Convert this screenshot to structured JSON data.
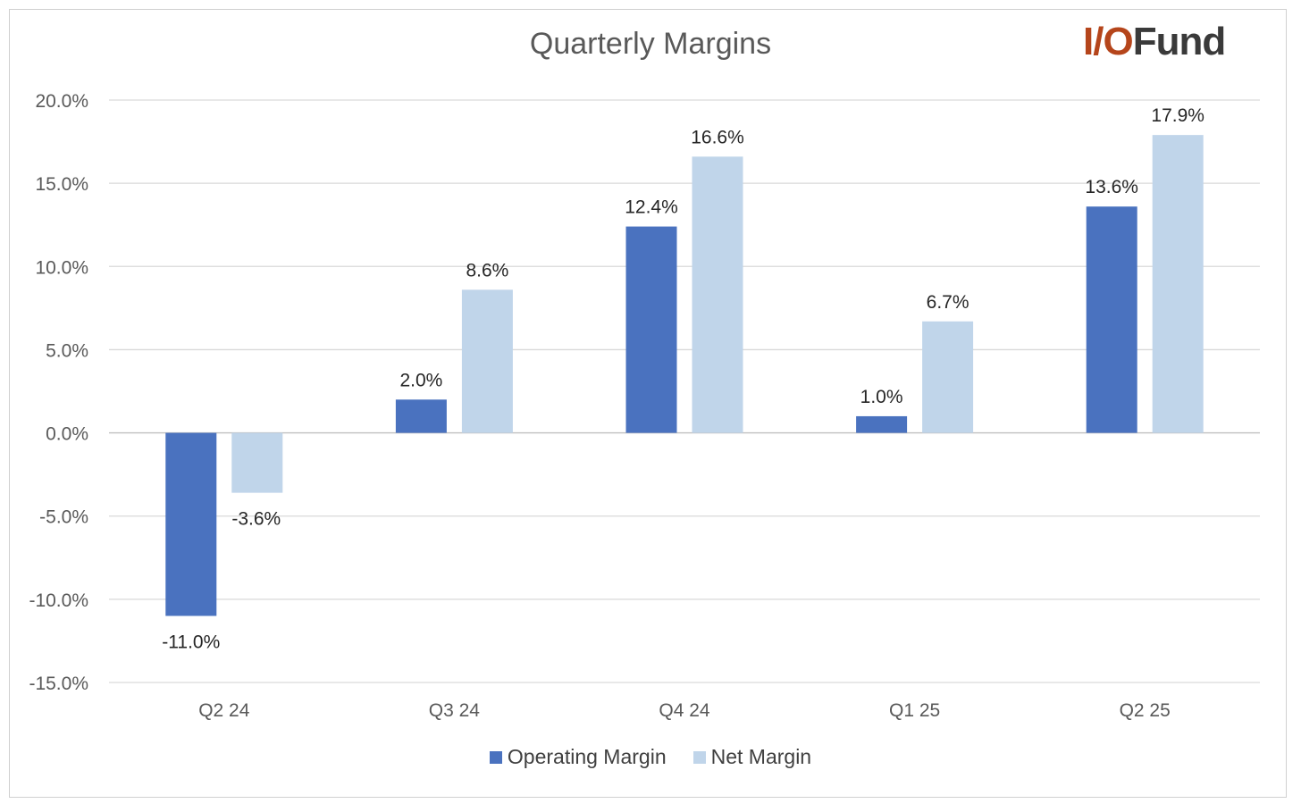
{
  "chart_data": {
    "type": "bar",
    "title": "Quarterly Margins",
    "categories": [
      "Q2 24",
      "Q3 24",
      "Q4 24",
      "Q1 25",
      "Q2 25"
    ],
    "series": [
      {
        "name": "Operating Margin",
        "color": "#4a72bf",
        "values": [
          -11.0,
          2.0,
          12.4,
          1.0,
          13.6
        ],
        "labels": [
          "-11.0%",
          "2.0%",
          "12.4%",
          "1.0%",
          "13.6%"
        ]
      },
      {
        "name": "Net Margin",
        "color": "#c0d5ea",
        "values": [
          -3.6,
          8.6,
          16.6,
          6.7,
          17.9
        ],
        "labels": [
          "-3.6%",
          "8.6%",
          "16.6%",
          "6.7%",
          "17.9%"
        ]
      }
    ],
    "ylim": [
      -15,
      20
    ],
    "yticks": [
      20,
      15,
      10,
      5,
      0,
      -5,
      -10,
      -15
    ],
    "ytick_labels": [
      "20.0%",
      "15.0%",
      "10.0%",
      "5.0%",
      "0.0%",
      "-5.0%",
      "-10.0%",
      "-15.0%"
    ],
    "xlabel": "",
    "ylabel": "",
    "grid": true,
    "legend": "bottom-center"
  },
  "logo": {
    "part1": "I/O",
    "part2": "Fund"
  },
  "colors": {
    "gridline": "#d9d9d9",
    "axis_text": "#595959",
    "label_text": "#262626"
  }
}
